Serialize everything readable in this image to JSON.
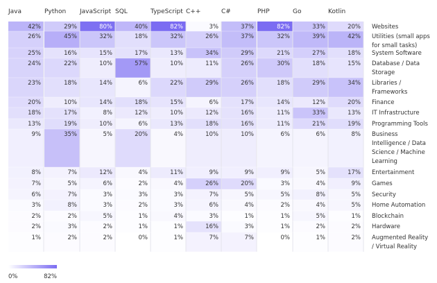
{
  "chart_data": {
    "type": "heatmap",
    "columns": [
      "Java",
      "Python",
      "JavaScript",
      "SQL",
      "TypeScript",
      "C++",
      "C#",
      "PHP",
      "Go",
      "Kotlin"
    ],
    "rows": [
      {
        "label": [
          "Websites"
        ],
        "values": [
          42,
          29,
          80,
          40,
          82,
          3,
          37,
          82,
          33,
          20
        ]
      },
      {
        "label": [
          "Utilities (small apps",
          "for small tasks)"
        ],
        "values": [
          26,
          45,
          32,
          18,
          32,
          26,
          37,
          32,
          39,
          42
        ]
      },
      {
        "label": [
          "System Software"
        ],
        "values": [
          25,
          16,
          15,
          17,
          13,
          34,
          29,
          21,
          27,
          18
        ]
      },
      {
        "label": [
          "Database / Data",
          "Storage"
        ],
        "values": [
          24,
          22,
          10,
          57,
          10,
          11,
          26,
          30,
          18,
          15
        ]
      },
      {
        "label": [
          "Libraries /",
          "Frameworks"
        ],
        "values": [
          23,
          18,
          14,
          6,
          22,
          29,
          26,
          18,
          29,
          34
        ]
      },
      {
        "label": [
          "Finance"
        ],
        "values": [
          20,
          10,
          14,
          18,
          15,
          6,
          17,
          14,
          12,
          20
        ]
      },
      {
        "label": [
          "IT Infrastructure"
        ],
        "values": [
          18,
          17,
          8,
          12,
          10,
          12,
          16,
          11,
          33,
          13
        ]
      },
      {
        "label": [
          "Programming Tools"
        ],
        "values": [
          13,
          19,
          10,
          6,
          13,
          18,
          16,
          11,
          21,
          19
        ]
      },
      {
        "label": [
          "Business",
          "Intelligence / Data",
          "Science / Machine",
          "Learning"
        ],
        "values": [
          9,
          35,
          5,
          20,
          4,
          10,
          10,
          6,
          6,
          8
        ]
      },
      {
        "label": [
          "Entertainment"
        ],
        "values": [
          8,
          7,
          12,
          4,
          11,
          9,
          9,
          9,
          5,
          17
        ]
      },
      {
        "label": [
          "Games"
        ],
        "values": [
          7,
          5,
          6,
          2,
          4,
          26,
          20,
          3,
          4,
          9
        ]
      },
      {
        "label": [
          "Security"
        ],
        "values": [
          6,
          7,
          3,
          3,
          3,
          7,
          5,
          5,
          8,
          5
        ]
      },
      {
        "label": [
          "Home Automation"
        ],
        "values": [
          3,
          8,
          3,
          2,
          3,
          6,
          4,
          2,
          4,
          5
        ]
      },
      {
        "label": [
          "Blockchain"
        ],
        "values": [
          2,
          2,
          5,
          1,
          4,
          3,
          1,
          1,
          5,
          1
        ]
      },
      {
        "label": [
          "Hardware"
        ],
        "values": [
          2,
          3,
          2,
          1,
          1,
          16,
          3,
          1,
          2,
          2
        ]
      },
      {
        "label": [
          "Augmented Reality",
          "/ Virtual Reality"
        ],
        "values": [
          1,
          2,
          2,
          0,
          1,
          7,
          7,
          0,
          1,
          2
        ]
      }
    ],
    "value_suffix": "%",
    "scale": {
      "min": 0,
      "max": 82,
      "min_label": "0%",
      "max_label": "82%"
    },
    "colors": {
      "low": "#ffffff",
      "high": "#7b6cf2",
      "text": "#333333",
      "grid": "#e4e4ec"
    }
  }
}
